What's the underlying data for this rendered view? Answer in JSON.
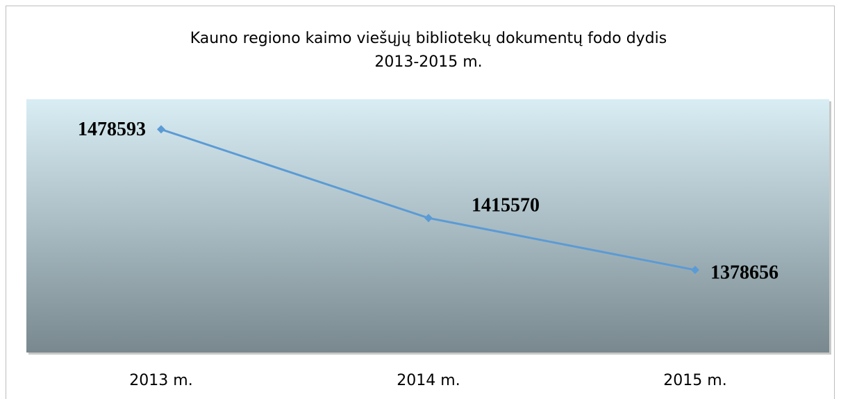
{
  "chart_data": {
    "type": "line",
    "title": [
      "Kauno regiono kaimo viešųjų bibliotekų dokumentų fodo dydis",
      "2013-2015 m."
    ],
    "categories": [
      "2013 m.",
      "2014 m.",
      "2015 m."
    ],
    "series": [
      {
        "name": null,
        "color": "#5b9bd5",
        "values": [
          1478593,
          1415570,
          1378656
        ]
      }
    ],
    "ylim": [
      1320000,
      1500000
    ]
  }
}
